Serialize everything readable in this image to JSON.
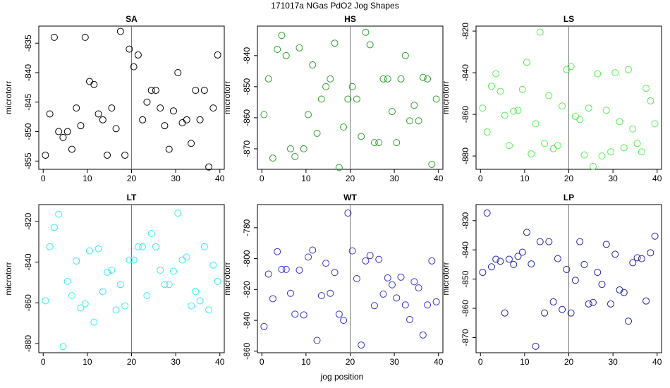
{
  "title": "171017a   NGas PdO2 Jog Shapes",
  "xlabel": "jog position",
  "chart_data": [
    {
      "type": "scatter",
      "title": "SA",
      "ylabel": "microtorr",
      "color": "#000000",
      "x": [
        0.5,
        1.5,
        2.5,
        3.5,
        4.5,
        5.5,
        6.5,
        7.5,
        8.5,
        9.5,
        10.5,
        11.5,
        12.5,
        13.5,
        14.5,
        15.5,
        16.5,
        17.5,
        18.5,
        19.5,
        20.5,
        21.5,
        22.5,
        23.5,
        24.5,
        25.5,
        26.5,
        27.5,
        28.5,
        29.5,
        30.5,
        31.5,
        32.5,
        33.5,
        34.5,
        35.5,
        36.5,
        37.5,
        38.5,
        39.5
      ],
      "values": [
        -854,
        -847,
        -834,
        -850,
        -851,
        -850,
        -853,
        -846,
        -849,
        -834,
        -841.5,
        -842,
        -847,
        -848,
        -854,
        -846,
        -849.5,
        -833,
        -854,
        -836,
        -839,
        -837,
        -848,
        -845,
        -843,
        -843,
        -846,
        -849,
        -853,
        -846.5,
        -840,
        -848.5,
        -848,
        -852,
        -843,
        -848,
        -843,
        -856,
        -846,
        -837
      ],
      "xlim": [
        -1,
        41
      ],
      "ylim": [
        -856.4,
        -832.1
      ],
      "xticks": [
        0,
        10,
        20,
        30,
        40
      ],
      "yticks": [
        -855,
        -850,
        -845,
        -840,
        -835
      ],
      "vline": 20
    },
    {
      "type": "scatter",
      "title": "HS",
      "ylabel": "microtorr",
      "color": "#2e9e2e",
      "x": [
        0.5,
        1.5,
        2.5,
        3.5,
        4.5,
        5.5,
        6.5,
        7.5,
        8.5,
        9.5,
        10.5,
        11.5,
        12.5,
        13.5,
        14.5,
        15.5,
        16.5,
        17.5,
        18.5,
        19.5,
        20.5,
        21.5,
        22.5,
        23.5,
        24.5,
        25.5,
        26.5,
        27.5,
        28.5,
        29.5,
        30.5,
        31.5,
        32.5,
        33.5,
        34.5,
        35.5,
        36.5,
        37.5,
        38.5,
        39.5
      ],
      "values": [
        -859,
        -847.5,
        -873,
        -838,
        -833.5,
        -840,
        -870,
        -872.5,
        -837.5,
        -870,
        -859,
        -843,
        -865,
        -854,
        -850,
        -847.5,
        -836,
        -876,
        -863,
        -854,
        -850,
        -854,
        -866,
        -832.5,
        -836.5,
        -868,
        -868,
        -847.5,
        -847.5,
        -858,
        -868,
        -847.5,
        -840,
        -861,
        -856,
        -861,
        -847,
        -847.5,
        -875,
        -854
      ],
      "xlim": [
        -1,
        41
      ],
      "ylim": [
        -876.6,
        -830.5
      ],
      "xticks": [
        0,
        10,
        20,
        30,
        40
      ],
      "yticks": [
        -870,
        -860,
        -850,
        -840
      ],
      "vline": 20
    },
    {
      "type": "scatter",
      "title": "LS",
      "ylabel": "microtorr",
      "color": "#55ee55",
      "x": [
        0.5,
        1.5,
        2.5,
        3.5,
        4.5,
        5.5,
        6.5,
        7.5,
        8.5,
        9.5,
        10.5,
        11.5,
        12.5,
        13.5,
        14.5,
        15.5,
        16.5,
        17.5,
        18.5,
        19.5,
        20.5,
        21.5,
        22.5,
        23.5,
        24.5,
        25.5,
        26.5,
        27.5,
        28.5,
        29.5,
        30.5,
        31.5,
        32.5,
        33.5,
        34.5,
        35.5,
        36.5,
        37.5,
        38.5,
        39.5
      ],
      "values": [
        -857,
        -868.5,
        -846.5,
        -840.5,
        -849,
        -860.5,
        -875,
        -858.5,
        -858,
        -848,
        -835,
        -879,
        -864.5,
        -820.5,
        -874,
        -851,
        -876.5,
        -875,
        -856,
        -838.5,
        -837,
        -861,
        -862.5,
        -879.5,
        -857,
        -885,
        -840.5,
        -880,
        -858,
        -878,
        -840,
        -863.5,
        -876,
        -838.5,
        -867,
        -874,
        -878,
        -847.5,
        -853.5,
        -864.5
      ],
      "xlim": [
        -1,
        41
      ],
      "ylim": [
        -886.4,
        -817.6
      ],
      "xticks": [
        0,
        10,
        20,
        30,
        40
      ],
      "yticks": [
        -880,
        -860,
        -840,
        -820
      ],
      "vline": 20
    },
    {
      "type": "scatter",
      "title": "LT",
      "ylabel": "microtorr",
      "color": "#33eeee",
      "x": [
        0.5,
        1.5,
        2.5,
        3.5,
        4.5,
        5.5,
        6.5,
        7.5,
        8.5,
        9.5,
        10.5,
        11.5,
        12.5,
        13.5,
        14.5,
        15.5,
        16.5,
        17.5,
        18.5,
        19.5,
        20.5,
        21.5,
        22.5,
        23.5,
        24.5,
        25.5,
        26.5,
        27.5,
        28.5,
        29.5,
        30.5,
        31.5,
        32.5,
        33.5,
        34.5,
        35.5,
        36.5,
        37.5,
        38.5,
        39.5
      ],
      "values": [
        -859,
        -832.5,
        -823,
        -816.5,
        -881.5,
        -849.5,
        -856.5,
        -839.5,
        -862.5,
        -860.5,
        -834.5,
        -869.5,
        -833.5,
        -854.5,
        -845,
        -844,
        -863.5,
        -851,
        -861.5,
        -839,
        -839,
        -832.5,
        -832.5,
        -856.5,
        -826,
        -832.5,
        -844,
        -851,
        -851,
        -844.5,
        -816,
        -839,
        -837.5,
        -861.5,
        -854.5,
        -859,
        -832.5,
        -863.5,
        -841.5,
        -849.5
      ],
      "xlim": [
        -1,
        41
      ],
      "ylim": [
        -884.5,
        -811.8
      ],
      "xticks": [
        0,
        10,
        20,
        30,
        40
      ],
      "yticks": [
        -880,
        -860,
        -840,
        -820
      ],
      "vline": 20
    },
    {
      "type": "scatter",
      "title": "WT",
      "ylabel": "microtorr",
      "color": "#3333cc",
      "x": [
        0.5,
        1.5,
        2.5,
        3.5,
        4.5,
        5.5,
        6.5,
        7.5,
        8.5,
        9.5,
        10.5,
        11.5,
        12.5,
        13.5,
        14.5,
        15.5,
        16.5,
        17.5,
        18.5,
        19.5,
        20.5,
        21.5,
        22.5,
        23.5,
        24.5,
        25.5,
        26.5,
        27.5,
        28.5,
        29.5,
        30.5,
        31.5,
        32.5,
        33.5,
        34.5,
        35.5,
        36.5,
        37.5,
        38.5,
        39.5
      ],
      "values": [
        -844,
        -810,
        -826,
        -795.5,
        -807,
        -807,
        -822.5,
        -836,
        -807.5,
        -836.5,
        -799,
        -794.5,
        -853,
        -824,
        -803,
        -822.5,
        -809,
        -836,
        -840,
        -770.5,
        -795,
        -813,
        -856,
        -801.5,
        -798,
        -830.5,
        -800.5,
        -823,
        -812.5,
        -817,
        -825.5,
        -812,
        -830,
        -839.5,
        -815,
        -819,
        -849.5,
        -830,
        -801.5,
        -828
      ],
      "xlim": [
        -1,
        41
      ],
      "ylim": [
        -861,
        -765
      ],
      "xticks": [
        0,
        10,
        20,
        30,
        40
      ],
      "yticks": [
        -860,
        -840,
        -820,
        -800,
        -780
      ],
      "vline": 20
    },
    {
      "type": "scatter",
      "title": "LP",
      "ylabel": "microtorr",
      "color": "#2222aa",
      "x": [
        0.5,
        1.5,
        2.5,
        3.5,
        4.5,
        5.5,
        6.5,
        7.5,
        8.5,
        9.5,
        10.5,
        11.5,
        12.5,
        13.5,
        14.5,
        15.5,
        16.5,
        17.5,
        18.5,
        19.5,
        20.5,
        21.5,
        22.5,
        23.5,
        24.5,
        25.5,
        26.5,
        27.5,
        28.5,
        29.5,
        30.5,
        31.5,
        32.5,
        33.5,
        34.5,
        35.5,
        36.5,
        37.5,
        38.5,
        39.5
      ],
      "values": [
        -847.7,
        -827.4,
        -845.8,
        -843.2,
        -843.9,
        -861.6,
        -843.2,
        -845,
        -842.2,
        -840.8,
        -834,
        -844.8,
        -873,
        -837.2,
        -861.6,
        -837.2,
        -857.8,
        -843,
        -860.4,
        -846.7,
        -861.6,
        -850.4,
        -837.2,
        -845,
        -858.5,
        -858,
        -847.7,
        -851.8,
        -838.1,
        -858.5,
        -841.5,
        -853.7,
        -854.6,
        -864.4,
        -844.4,
        -842.7,
        -843,
        -857.5,
        -841,
        -835.3
      ],
      "xlim": [
        -1,
        41
      ],
      "ylim": [
        -875.2,
        -824.5
      ],
      "xticks": [
        0,
        10,
        20,
        30,
        40
      ],
      "yticks": [
        -870,
        -860,
        -850,
        -840,
        -830
      ],
      "vline": 20
    }
  ]
}
